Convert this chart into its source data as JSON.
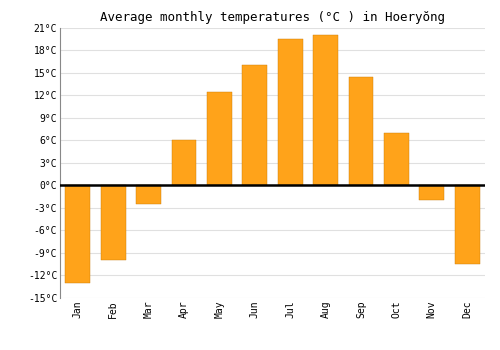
{
  "title": "Average monthly temperatures (°C ) in Hoeryŏng",
  "months": [
    "Jan",
    "Feb",
    "Mar",
    "Apr",
    "May",
    "Jun",
    "Jul",
    "Aug",
    "Sep",
    "Oct",
    "Nov",
    "Dec"
  ],
  "values": [
    -13,
    -10,
    -2.5,
    6,
    12.5,
    16,
    19.5,
    20,
    14.5,
    7,
    -2,
    -10.5
  ],
  "bar_color": "#FFA31A",
  "ylim": [
    -15,
    21
  ],
  "yticks": [
    -15,
    -12,
    -9,
    -6,
    -3,
    0,
    3,
    6,
    9,
    12,
    15,
    18,
    21
  ],
  "background_color": "#ffffff",
  "plot_bg_color": "#ffffff",
  "grid_color": "#e0e0e0",
  "zero_line_color": "#000000",
  "title_fontsize": 9,
  "tick_fontsize": 7,
  "bar_width": 0.7
}
